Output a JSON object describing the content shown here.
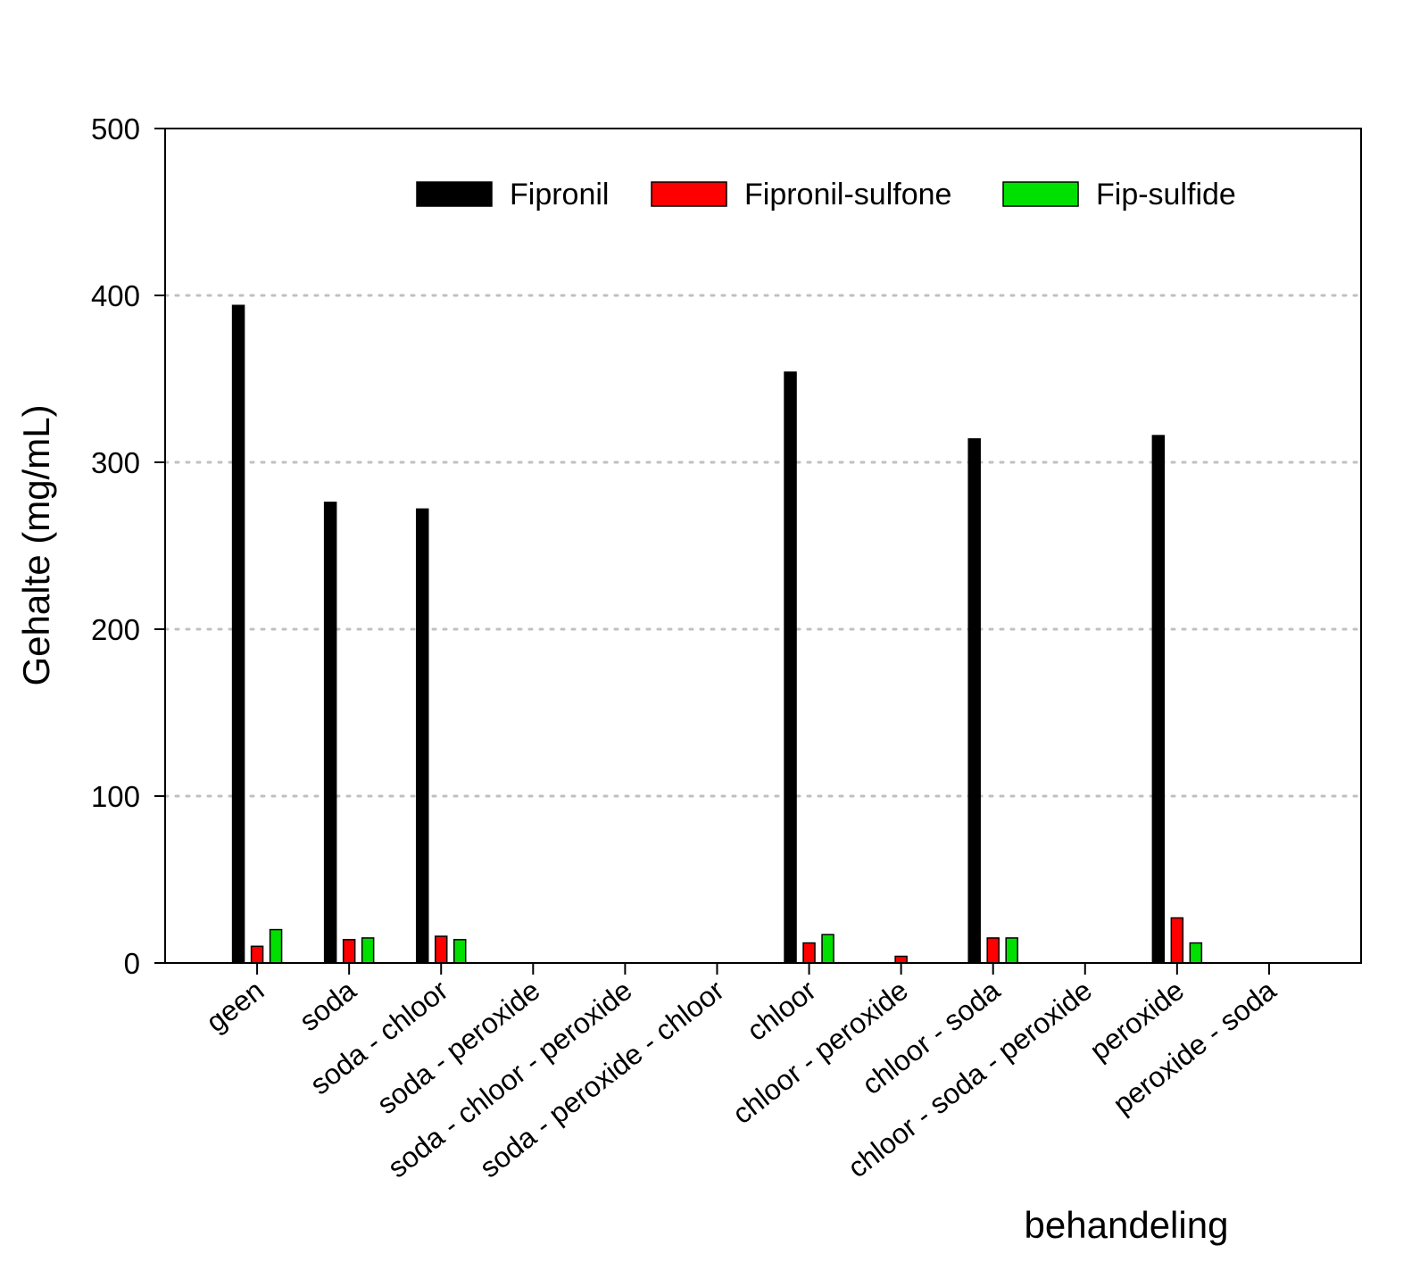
{
  "chart_data": {
    "type": "bar",
    "title": "",
    "xlabel": "behandeling",
    "ylabel": "Gehalte (mg/mL)",
    "ylim": [
      0,
      500
    ],
    "yticks": [
      0,
      100,
      200,
      300,
      400,
      500
    ],
    "grid": "horizontal dotted",
    "legend_position": "top",
    "categories": [
      "geen",
      "soda",
      "soda - chloor",
      "soda - peroxide",
      "soda - chloor - peroxide",
      "soda - peroxide - chloor",
      "chloor",
      "chloor - peroxide",
      "chloor - soda",
      "chloor - soda - peroxide",
      "peroxide",
      "peroxide - soda"
    ],
    "series": [
      {
        "name": "Fipronil",
        "color": "#000000",
        "values": [
          394,
          276,
          272,
          0,
          0,
          0,
          354,
          0,
          314,
          0,
          316,
          0
        ]
      },
      {
        "name": "Fipronil-sulfone",
        "color": "#ff0000",
        "values": [
          10,
          14,
          16,
          0,
          0,
          0,
          12,
          4,
          15,
          0,
          27,
          0
        ]
      },
      {
        "name": "Fip-sulfide",
        "color": "#00e000",
        "values": [
          20,
          15,
          14,
          0,
          0,
          0,
          17,
          0,
          15,
          0,
          12,
          0
        ]
      }
    ]
  }
}
